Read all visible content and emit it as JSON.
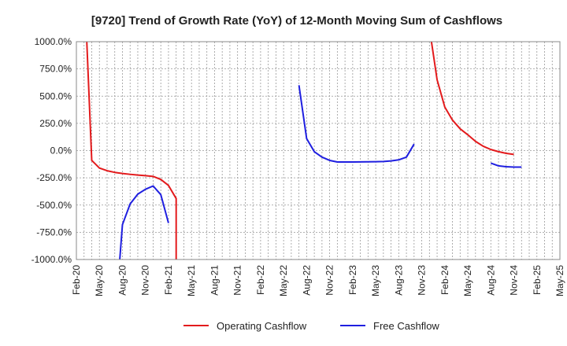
{
  "chart_data": {
    "type": "line",
    "title": "[9720]  Trend of Growth Rate (YoY) of 12-Month Moving Sum of Cashflows",
    "xlabel": "",
    "ylabel": "",
    "ylim": [
      -1000,
      1000
    ],
    "y_ticks": [
      -1000,
      -750,
      -500,
      -250,
      0,
      250,
      500,
      750,
      1000
    ],
    "y_tick_labels": [
      "-1000.0%",
      "-750.0%",
      "-500.0%",
      "-250.0%",
      "0.0%",
      "250.0%",
      "500.0%",
      "750.0%",
      "1000.0%"
    ],
    "x_range": [
      "2020-02",
      "2025-05"
    ],
    "x_ticks": [
      "2020-02",
      "2020-05",
      "2020-08",
      "2020-11",
      "2021-02",
      "2021-05",
      "2021-08",
      "2021-11",
      "2022-02",
      "2022-05",
      "2022-08",
      "2022-11",
      "2023-02",
      "2023-05",
      "2023-08",
      "2023-11",
      "2024-02",
      "2024-05",
      "2024-08",
      "2024-11",
      "2025-02",
      "2025-05"
    ],
    "x_tick_labels": [
      "Feb-20",
      "May-20",
      "Aug-20",
      "Nov-20",
      "Feb-21",
      "May-21",
      "Aug-21",
      "Nov-21",
      "Feb-22",
      "May-22",
      "Aug-22",
      "Nov-22",
      "Feb-23",
      "May-23",
      "Aug-23",
      "Nov-23",
      "Feb-24",
      "May-24",
      "Aug-24",
      "Nov-24",
      "Feb-25",
      "May-25"
    ],
    "grid": true,
    "legend_position": "bottom",
    "series": [
      {
        "name": "Operating Cashflow",
        "color": "#e31a1c",
        "points": [
          [
            "2020-03",
            1600
          ],
          [
            "2020-04",
            -90
          ],
          [
            "2020-05",
            -160
          ],
          [
            "2020-06",
            -185
          ],
          [
            "2020-07",
            -200
          ],
          [
            "2020-08",
            -210
          ],
          [
            "2020-09",
            -218
          ],
          [
            "2020-10",
            -225
          ],
          [
            "2020-11",
            -230
          ],
          [
            "2020-12",
            -237
          ],
          [
            "2021-01",
            -265
          ],
          [
            "2021-02",
            -320
          ],
          [
            "2021-03",
            -440
          ],
          [
            "2021-03",
            -1600
          ]
        ],
        "points_2": [
          [
            "2023-11",
            1600
          ],
          [
            "2024-01",
            650
          ],
          [
            "2024-02",
            400
          ],
          [
            "2024-03",
            280
          ],
          [
            "2024-04",
            200
          ],
          [
            "2024-05",
            145
          ],
          [
            "2024-06",
            85
          ],
          [
            "2024-07",
            40
          ],
          [
            "2024-08",
            10
          ],
          [
            "2024-09",
            -10
          ],
          [
            "2024-10",
            -25
          ],
          [
            "2024-11",
            -35
          ]
        ]
      },
      {
        "name": "Free Cashflow",
        "color": "#1f1fe0",
        "points": [
          [
            "2020-07",
            -1600
          ],
          [
            "2020-08",
            -680
          ],
          [
            "2020-09",
            -490
          ],
          [
            "2020-10",
            -400
          ],
          [
            "2020-11",
            -355
          ],
          [
            "2020-12",
            -325
          ],
          [
            "2021-01",
            -405
          ],
          [
            "2021-02",
            -665
          ]
        ],
        "points_2": [
          [
            "2022-07",
            600
          ],
          [
            "2022-08",
            110
          ],
          [
            "2022-09",
            -10
          ],
          [
            "2022-10",
            -60
          ],
          [
            "2022-11",
            -90
          ],
          [
            "2022-12",
            -105
          ],
          [
            "2023-01",
            -105
          ],
          [
            "2023-02",
            -105
          ],
          [
            "2023-03",
            -104
          ],
          [
            "2023-04",
            -103
          ],
          [
            "2023-05",
            -102
          ],
          [
            "2023-06",
            -100
          ],
          [
            "2023-07",
            -95
          ],
          [
            "2023-08",
            -85
          ],
          [
            "2023-09",
            -60
          ],
          [
            "2023-10",
            60
          ]
        ],
        "points_3": [
          [
            "2024-08",
            -115
          ],
          [
            "2024-09",
            -140
          ],
          [
            "2024-10",
            -148
          ],
          [
            "2024-11",
            -152
          ],
          [
            "2024-12",
            -152
          ]
        ]
      }
    ]
  }
}
